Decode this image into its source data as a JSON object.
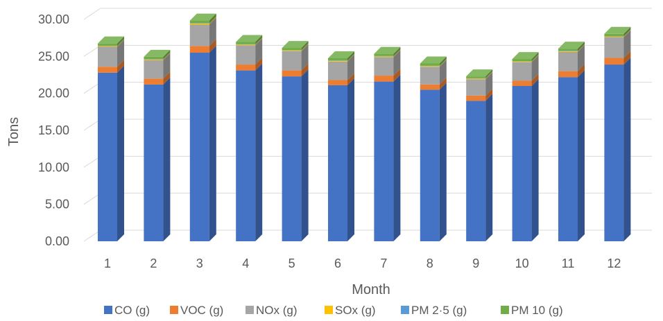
{
  "chart_data": {
    "type": "bar",
    "stacked": true,
    "three_d": true,
    "xlabel": "Month",
    "ylabel": "Tons",
    "ylim": [
      0,
      30
    ],
    "y_ticks": [
      "0.00",
      "5.00",
      "10.00",
      "15.00",
      "20.00",
      "25.00",
      "30.00"
    ],
    "categories": [
      "1",
      "2",
      "3",
      "4",
      "5",
      "6",
      "7",
      "8",
      "9",
      "10",
      "11",
      "12"
    ],
    "grid": true,
    "legend_position": "bottom",
    "series": [
      {
        "name": "CO (g)",
        "color": "#4472C4",
        "values": [
          22.8,
          21.2,
          25.5,
          23.1,
          22.3,
          21.1,
          21.6,
          20.5,
          19.0,
          21.0,
          22.2,
          23.9
        ]
      },
      {
        "name": "VOC (g)",
        "color": "#ED7D31",
        "values": [
          0.8,
          0.8,
          0.9,
          0.8,
          0.8,
          0.7,
          0.8,
          0.7,
          0.7,
          0.7,
          0.8,
          0.9
        ]
      },
      {
        "name": "NOx (g)",
        "color": "#A5A5A5",
        "values": [
          2.7,
          2.5,
          2.9,
          2.6,
          2.6,
          2.5,
          2.5,
          2.4,
          2.2,
          2.5,
          2.6,
          2.8
        ]
      },
      {
        "name": "SOx (g)",
        "color": "#FFC000",
        "values": [
          0.1,
          0.1,
          0.15,
          0.1,
          0.1,
          0.1,
          0.1,
          0.1,
          0.1,
          0.1,
          0.1,
          0.1
        ]
      },
      {
        "name": "PM 2·5 (g)",
        "color": "#5B9BD5",
        "values": [
          0.05,
          0.05,
          0.05,
          0.05,
          0.05,
          0.05,
          0.05,
          0.05,
          0.05,
          0.05,
          0.05,
          0.05
        ]
      },
      {
        "name": "PM 10 (g)",
        "color": "#70AD47",
        "values": [
          0.3,
          0.3,
          0.35,
          0.3,
          0.3,
          0.3,
          0.3,
          0.3,
          0.25,
          0.3,
          0.3,
          0.3
        ]
      }
    ]
  }
}
